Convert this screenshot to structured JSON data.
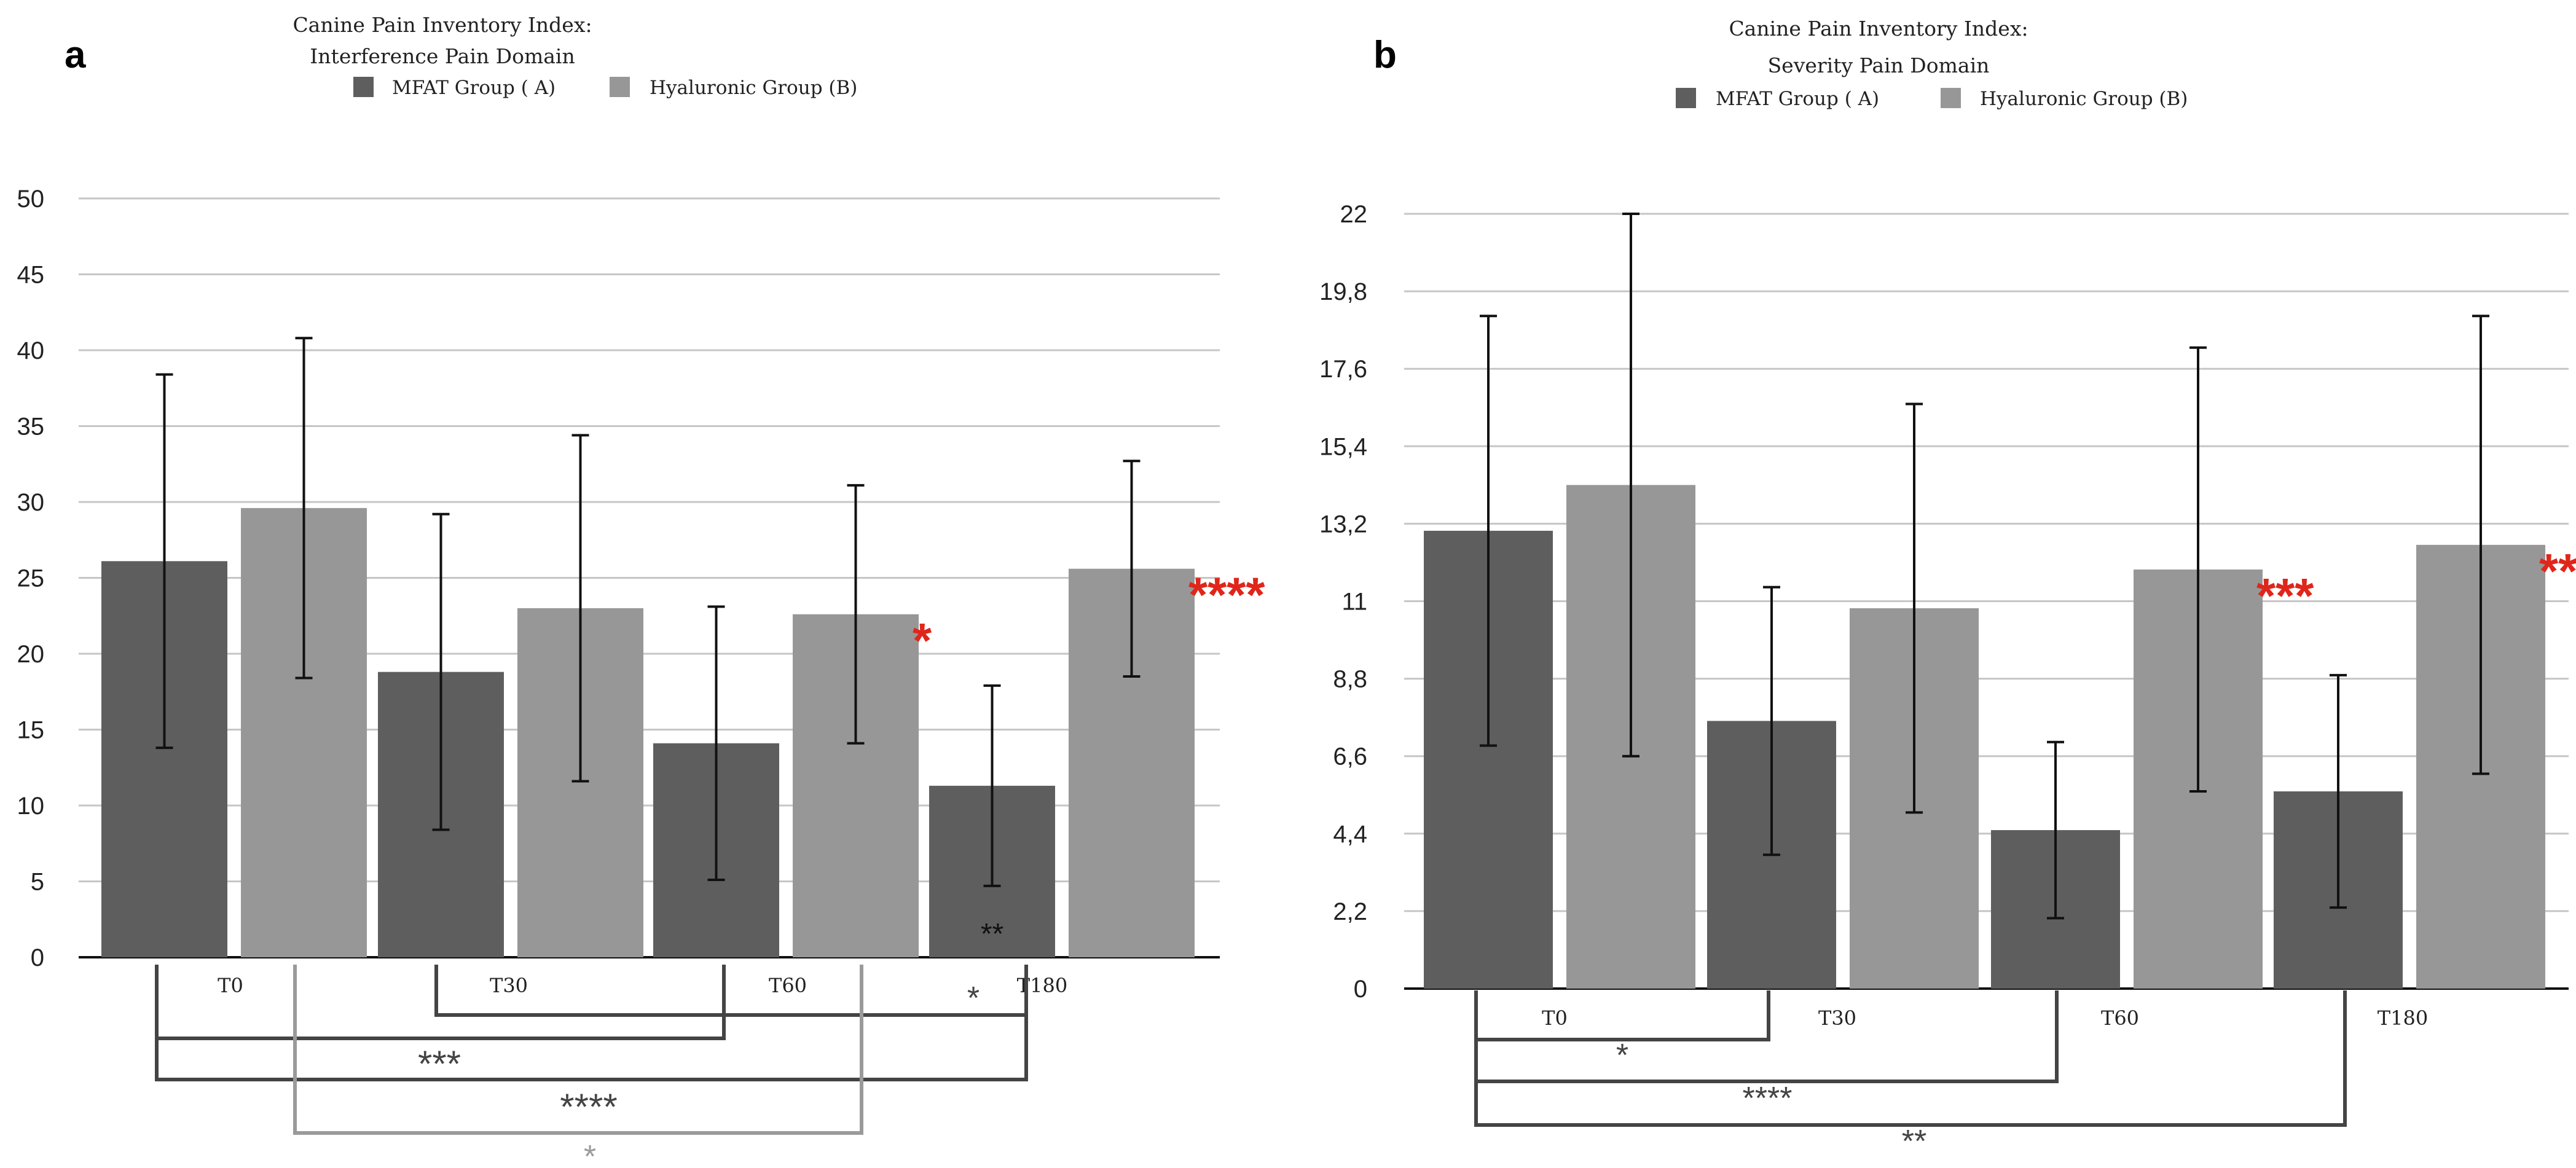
{
  "colors": {
    "mfat": "#5e5e5e",
    "hyaluronic": "#979797",
    "red_star": "#e0261b",
    "black_bracket": "#444444",
    "grey_bracket": "#9a9a9a",
    "grid": "#c6c6c6"
  },
  "chart_data": [
    {
      "panel": "a",
      "type": "bar",
      "title": "Canine Pain Inventory Index:",
      "subtitle": "Interference Pain Domain",
      "categories": [
        "T0",
        "T30",
        "T60",
        "T180"
      ],
      "ylim": [
        0,
        50
      ],
      "yticks": [
        "0",
        "5",
        "10",
        "15",
        "20",
        "25",
        "30",
        "35",
        "40",
        "45",
        "50"
      ],
      "grid": true,
      "legend_position": "top",
      "series": [
        {
          "name": "MFAT Group ( A)",
          "values": [
            26.1,
            18.8,
            14.1,
            11.3
          ],
          "error": [
            12.3,
            10.4,
            9.0,
            6.6
          ]
        },
        {
          "name": "Hyaluronic Group (B)",
          "values": [
            29.6,
            23.0,
            22.6,
            25.6
          ],
          "error": [
            11.2,
            11.4,
            8.5,
            7.1
          ]
        }
      ],
      "bar_markers": [
        {
          "category": "T60",
          "series": 1,
          "text": "*",
          "color": "red"
        },
        {
          "category": "T180",
          "series": 1,
          "text": "****",
          "color": "red"
        },
        {
          "category": "T180",
          "series": 0,
          "text": "**",
          "color": "black",
          "inside": true
        }
      ],
      "brackets": [
        {
          "from": "T30",
          "to": "T180",
          "text": "*",
          "color": "black"
        },
        {
          "from": "T0",
          "to": "T60",
          "text": "***",
          "color": "black"
        },
        {
          "from": "T0",
          "to": "T180",
          "text": "****",
          "color": "black"
        },
        {
          "from": "T0",
          "to": "T60",
          "series": "hyaluronic",
          "text": "*",
          "color": "grey"
        }
      ]
    },
    {
      "panel": "b",
      "type": "bar",
      "title": "Canine Pain Inventory Index:",
      "subtitle": "Severity Pain Domain",
      "categories": [
        "T0",
        "T30",
        "T60",
        "T180"
      ],
      "ylim": [
        0,
        22
      ],
      "yticks": [
        "0",
        "2,2",
        "4,4",
        "6,6",
        "8,8",
        "11",
        "13,2",
        "15,4",
        "17,6",
        "19,8",
        "22"
      ],
      "grid": true,
      "legend_position": "top",
      "series": [
        {
          "name": "MFAT Group ( A)",
          "values": [
            13.0,
            7.6,
            4.5,
            5.6
          ],
          "error": [
            6.1,
            3.8,
            2.5,
            3.3
          ]
        },
        {
          "name": "Hyaluronic Group (B)",
          "values": [
            14.3,
            10.8,
            11.9,
            12.6
          ],
          "error": [
            7.7,
            5.8,
            6.3,
            6.5
          ]
        }
      ],
      "bar_markers": [
        {
          "category": "T60",
          "series": 1,
          "text": "***",
          "color": "red"
        },
        {
          "category": "T180",
          "series": 1,
          "text": "**",
          "color": "red"
        }
      ],
      "brackets": [
        {
          "from": "T0",
          "to": "T30",
          "text": "*",
          "color": "black"
        },
        {
          "from": "T0",
          "to": "T60",
          "text": "****",
          "color": "black"
        },
        {
          "from": "T0",
          "to": "T180",
          "text": "**",
          "color": "black"
        }
      ]
    }
  ],
  "panel_labels": [
    "a",
    "b"
  ]
}
